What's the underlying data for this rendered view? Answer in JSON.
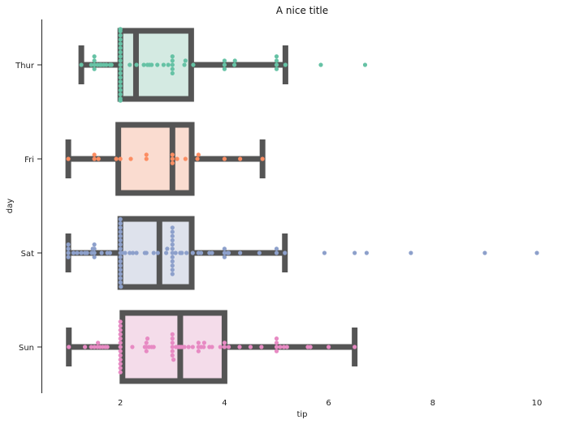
{
  "chart_data": {
    "type": "box",
    "overlay": "swarm",
    "orientation": "horizontal",
    "title": "A nice title",
    "xlabel": "tip",
    "ylabel": "day",
    "xlim": [
      0.5,
      10.5
    ],
    "xticks": [
      2,
      4,
      6,
      8,
      10
    ],
    "categories": [
      "Thur",
      "Fri",
      "Sat",
      "Sun"
    ],
    "box_color": "#555555",
    "grid": false,
    "series": [
      {
        "category": "Thur",
        "color": "#66c2a5",
        "fill": "#d4eae2",
        "box": {
          "whisker_low": 1.25,
          "q1": 2.0,
          "median": 2.3,
          "q3": 3.36,
          "whisker_high": 5.17
        },
        "points": [
          1.25,
          1.44,
          1.5,
          1.56,
          1.61,
          1.63,
          1.68,
          1.73,
          1.8,
          1.83,
          1.5,
          1.5,
          1.5,
          2.0,
          2.0,
          2.0,
          2.0,
          2.0,
          2.0,
          2.0,
          2.0,
          2.0,
          2.0,
          2.0,
          2.0,
          2.0,
          2.0,
          2.0,
          2.0,
          2.0,
          2.0,
          2.0,
          2.0,
          2.0,
          2.18,
          2.31,
          2.45,
          2.52,
          2.56,
          2.6,
          2.71,
          2.83,
          2.92,
          3.0,
          3.0,
          3.0,
          3.0,
          3.0,
          3.23,
          3.25,
          3.4,
          4.0,
          4.0,
          4.0,
          4.19,
          4.2,
          5.0,
          5.0,
          5.0,
          5.0,
          5.17,
          5.85,
          6.7
        ]
      },
      {
        "category": "Fri",
        "color": "#fc8d62",
        "fill": "#fadcd0",
        "box": {
          "whisker_low": 1.0,
          "q1": 1.96,
          "median": 3.0,
          "q3": 3.37,
          "whisker_high": 4.73
        },
        "points": [
          1.0,
          1.5,
          1.5,
          1.58,
          1.92,
          2.0,
          2.2,
          2.5,
          2.5,
          3.0,
          3.0,
          3.0,
          3.09,
          3.25,
          3.48,
          3.5,
          4.0,
          4.3,
          4.73
        ]
      },
      {
        "category": "Sat",
        "color": "#8da0cb",
        "fill": "#dee2ec",
        "box": {
          "whisker_low": 1.0,
          "q1": 2.0,
          "median": 2.75,
          "q3": 3.37,
          "whisker_high": 5.16
        },
        "points": [
          1.0,
          1.0,
          1.0,
          1.0,
          1.1,
          1.17,
          1.25,
          1.32,
          1.36,
          1.45,
          1.47,
          1.5,
          1.5,
          1.5,
          1.5,
          1.64,
          1.75,
          1.8,
          2.0,
          2.0,
          2.0,
          2.0,
          2.0,
          2.0,
          2.0,
          2.0,
          2.0,
          2.0,
          2.0,
          2.0,
          2.0,
          2.0,
          2.0,
          2.0,
          2.01,
          2.03,
          2.09,
          2.18,
          2.24,
          2.31,
          2.47,
          2.5,
          2.64,
          2.72,
          2.88,
          2.9,
          3.0,
          3.0,
          3.0,
          3.0,
          3.0,
          3.0,
          3.0,
          3.0,
          3.0,
          3.0,
          3.0,
          3.0,
          3.06,
          3.15,
          3.18,
          3.27,
          3.39,
          3.5,
          3.55,
          3.71,
          3.76,
          4.0,
          4.0,
          4.0,
          4.06,
          4.08,
          4.3,
          4.67,
          5.0,
          5.0,
          5.16,
          5.92,
          6.5,
          6.73,
          7.58,
          9.0,
          10.0
        ]
      },
      {
        "category": "Sun",
        "color": "#e78ac3",
        "fill": "#f4dcea",
        "box": {
          "whisker_low": 1.01,
          "q1": 2.04,
          "median": 3.15,
          "q3": 4.0,
          "whisker_high": 6.5
        },
        "points": [
          1.01,
          1.32,
          1.44,
          1.5,
          1.56,
          1.57,
          1.61,
          1.66,
          1.71,
          1.75,
          2.0,
          2.0,
          2.0,
          2.0,
          2.0,
          2.0,
          2.0,
          2.0,
          2.0,
          2.0,
          2.0,
          2.0,
          2.0,
          2.23,
          2.47,
          2.5,
          2.5,
          2.5,
          2.52,
          2.55,
          2.6,
          2.64,
          3.0,
          3.0,
          3.0,
          3.0,
          3.0,
          3.0,
          3.02,
          3.07,
          3.12,
          3.15,
          3.18,
          3.23,
          3.31,
          3.39,
          3.5,
          3.5,
          3.5,
          3.55,
          3.6,
          3.61,
          3.71,
          3.76,
          3.92,
          4.0,
          4.0,
          4.08,
          4.29,
          4.5,
          4.71,
          5.0,
          5.0,
          5.0,
          5.0,
          5.07,
          5.14,
          5.2,
          5.6,
          5.65,
          6.0,
          6.5
        ]
      }
    ]
  }
}
